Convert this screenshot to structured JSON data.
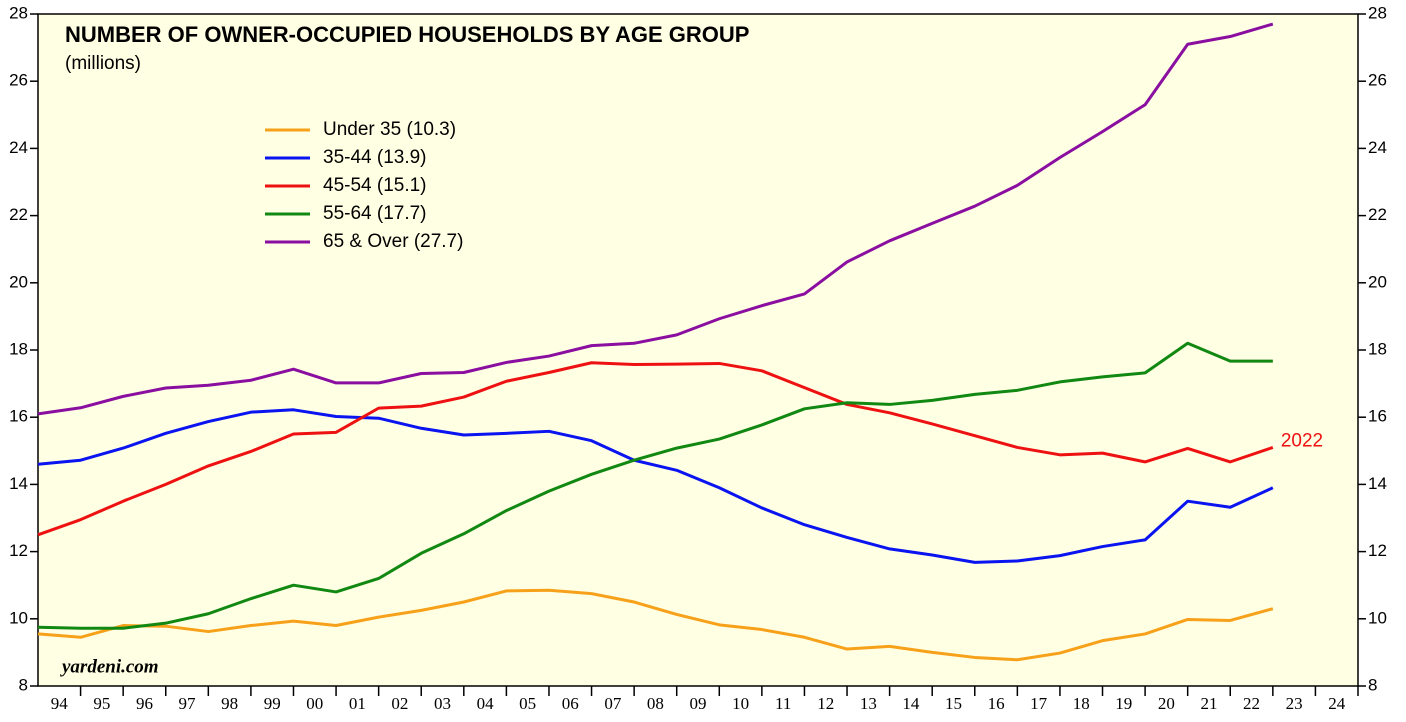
{
  "chart_data": {
    "type": "line",
    "title": "NUMBER OF OWNER-OCCUPIED HOUSEHOLDS BY AGE GROUP",
    "subtitle": "(millions)",
    "annotation": "2022",
    "source": "yardeni.com",
    "x": [
      1993,
      1994,
      1995,
      1996,
      1997,
      1998,
      1999,
      2000,
      2001,
      2002,
      2003,
      2004,
      2005,
      2006,
      2007,
      2008,
      2009,
      2010,
      2011,
      2012,
      2013,
      2014,
      2015,
      2016,
      2017,
      2018,
      2019,
      2020,
      2021,
      2022
    ],
    "xlim": [
      1993,
      2024
    ],
    "xticks": [
      {
        "value": 1994,
        "label": "94"
      },
      {
        "value": 1995,
        "label": "95"
      },
      {
        "value": 1996,
        "label": "96"
      },
      {
        "value": 1997,
        "label": "97"
      },
      {
        "value": 1998,
        "label": "98"
      },
      {
        "value": 1999,
        "label": "99"
      },
      {
        "value": 2000,
        "label": "00"
      },
      {
        "value": 2001,
        "label": "01"
      },
      {
        "value": 2002,
        "label": "02"
      },
      {
        "value": 2003,
        "label": "03"
      },
      {
        "value": 2004,
        "label": "04"
      },
      {
        "value": 2005,
        "label": "05"
      },
      {
        "value": 2006,
        "label": "06"
      },
      {
        "value": 2007,
        "label": "07"
      },
      {
        "value": 2008,
        "label": "08"
      },
      {
        "value": 2009,
        "label": "09"
      },
      {
        "value": 2010,
        "label": "10"
      },
      {
        "value": 2011,
        "label": "11"
      },
      {
        "value": 2012,
        "label": "12"
      },
      {
        "value": 2013,
        "label": "13"
      },
      {
        "value": 2014,
        "label": "14"
      },
      {
        "value": 2015,
        "label": "15"
      },
      {
        "value": 2016,
        "label": "16"
      },
      {
        "value": 2017,
        "label": "17"
      },
      {
        "value": 2018,
        "label": "18"
      },
      {
        "value": 2019,
        "label": "19"
      },
      {
        "value": 2020,
        "label": "20"
      },
      {
        "value": 2021,
        "label": "21"
      },
      {
        "value": 2022,
        "label": "22"
      },
      {
        "value": 2023,
        "label": "23"
      },
      {
        "value": 2024,
        "label": "24"
      }
    ],
    "ylim": [
      8,
      28
    ],
    "yticks": [
      8,
      10,
      12,
      14,
      16,
      18,
      20,
      22,
      24,
      26,
      28
    ],
    "series": [
      {
        "name": "Under 35 (10.3)",
        "color": "#f7a11a",
        "values": [
          9.55,
          9.45,
          9.8,
          9.78,
          9.62,
          9.8,
          9.93,
          9.8,
          10.05,
          10.25,
          10.5,
          10.83,
          10.85,
          10.75,
          10.5,
          10.13,
          9.82,
          9.68,
          9.45,
          9.1,
          9.18,
          9.0,
          8.85,
          8.78,
          8.98,
          9.35,
          9.55,
          9.98,
          9.95,
          10.3
        ]
      },
      {
        "name": "35-44 (13.9)",
        "color": "#0a14f0",
        "values": [
          14.6,
          14.72,
          15.08,
          15.52,
          15.87,
          16.15,
          16.22,
          16.02,
          15.97,
          15.67,
          15.47,
          15.52,
          15.58,
          15.3,
          14.72,
          14.42,
          13.9,
          13.3,
          12.8,
          12.42,
          12.08,
          11.9,
          11.68,
          11.72,
          11.88,
          12.15,
          12.35,
          13.5,
          13.32,
          13.9
        ]
      },
      {
        "name": "45-54 (15.1)",
        "color": "#ee1111",
        "values": [
          12.5,
          12.95,
          13.5,
          14.0,
          14.55,
          14.98,
          15.5,
          15.55,
          16.27,
          16.33,
          16.6,
          17.07,
          17.33,
          17.62,
          17.57,
          17.58,
          17.6,
          17.38,
          16.88,
          16.38,
          16.13,
          15.8,
          15.45,
          15.1,
          14.88,
          14.93,
          14.67,
          15.07,
          14.67,
          15.1
        ]
      },
      {
        "name": "55-64 (17.7)",
        "color": "#118811",
        "values": [
          9.75,
          9.72,
          9.72,
          9.87,
          10.15,
          10.6,
          11.0,
          10.8,
          11.2,
          11.95,
          12.53,
          13.22,
          13.8,
          14.3,
          14.72,
          15.08,
          15.35,
          15.77,
          16.25,
          16.43,
          16.38,
          16.5,
          16.68,
          16.8,
          17.05,
          17.2,
          17.32,
          18.2,
          17.67,
          17.67
        ]
      },
      {
        "name": "65 & Over (27.7)",
        "color": "#8a0ea0",
        "values": [
          16.1,
          16.28,
          16.62,
          16.87,
          16.95,
          17.1,
          17.43,
          17.02,
          17.02,
          17.3,
          17.33,
          17.63,
          17.82,
          18.13,
          18.2,
          18.45,
          18.93,
          19.32,
          19.67,
          20.62,
          21.25,
          21.77,
          22.28,
          22.9,
          23.73,
          24.5,
          25.3,
          27.1,
          27.33,
          27.7
        ]
      }
    ]
  }
}
